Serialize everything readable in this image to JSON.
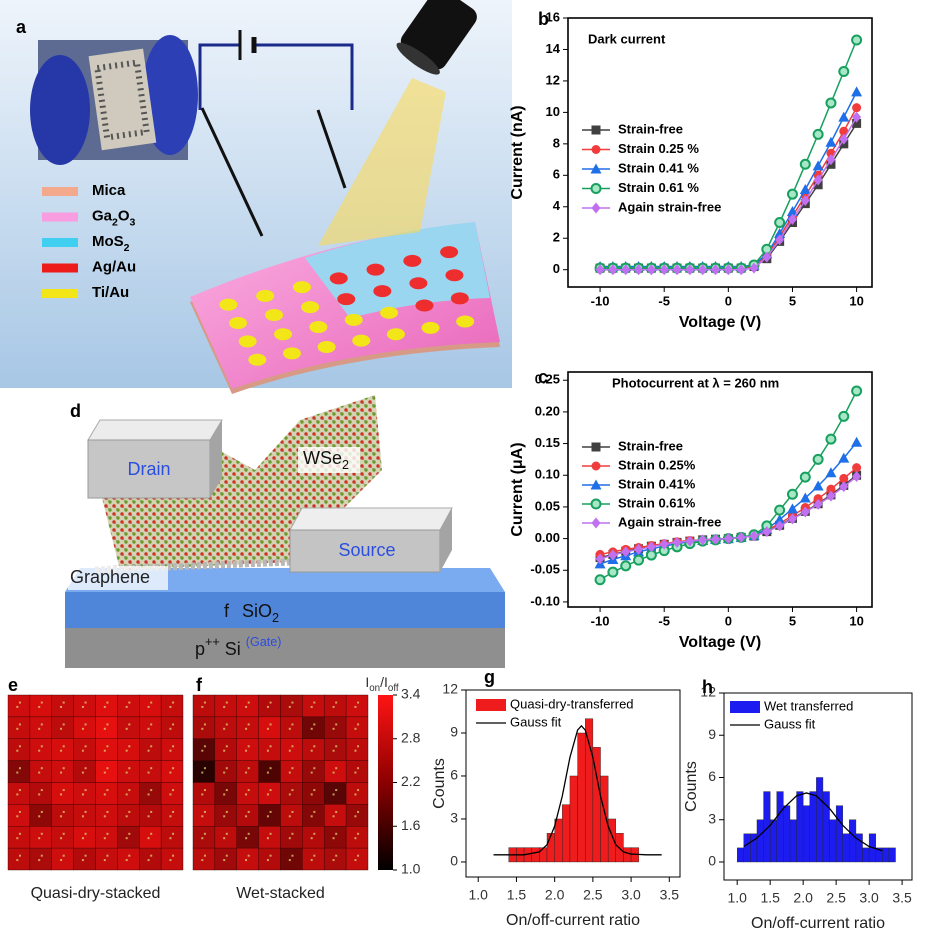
{
  "illustration_a": {
    "label": "a",
    "legend": [
      {
        "name": [
          "Mica"
        ],
        "color": "#f5a98c"
      },
      {
        "name": [
          "Ga",
          "2",
          "O",
          "3"
        ],
        "color": "#f89de0"
      },
      {
        "name": [
          "MoS",
          "2"
        ],
        "color": "#40cff0"
      },
      {
        "name": [
          "Ag/Au"
        ],
        "color": "#ee1b1b"
      },
      {
        "name": [
          "Ti/Au"
        ],
        "color": "#f2e619"
      }
    ]
  },
  "illustration_d": {
    "label": "d",
    "drain": "Drain",
    "source": "Source",
    "material": [
      "WSe",
      "2"
    ],
    "graphene": "Graphene",
    "oxide_marker": "f",
    "oxide": [
      "SiO",
      "2"
    ],
    "gate": [
      "p",
      "++",
      " Si ",
      "(Gate)"
    ]
  },
  "chart_data": [
    {
      "type": "line",
      "label": "b",
      "annotation": "Dark current",
      "x_label": "Voltage (V)",
      "y_label": "Current (nA)",
      "x": [
        -10,
        -9,
        -8,
        -7,
        -6,
        -5,
        -4,
        -3,
        -2,
        -1,
        0,
        1,
        2,
        3,
        4,
        5,
        6,
        7,
        8,
        9,
        10
      ],
      "xlim": [
        -12.5,
        11.2
      ],
      "xticks": [
        -10,
        -5,
        0,
        5,
        10
      ],
      "ylim": [
        -1.1,
        16
      ],
      "yticks": [
        0,
        2,
        4,
        6,
        8,
        10,
        12,
        14,
        16
      ],
      "series": [
        {
          "name": "Strain-free",
          "color": "#404040",
          "marker": "square",
          "values": [
            0.1,
            0.1,
            0.1,
            0.1,
            0.1,
            0.1,
            0.1,
            0.1,
            0.1,
            0.1,
            0.1,
            0.1,
            0.2,
            0.7,
            1.8,
            3.0,
            4.2,
            5.4,
            6.7,
            8.0,
            9.3
          ]
        },
        {
          "name": "Strain 0.25 %",
          "color": "#f03c3c",
          "marker": "circle",
          "values": [
            0.1,
            0.1,
            0.1,
            0.1,
            0.1,
            0.1,
            0.1,
            0.1,
            0.1,
            0.1,
            0.1,
            0.1,
            0.2,
            0.9,
            2.1,
            3.4,
            4.7,
            6.0,
            7.4,
            8.8,
            10.3
          ]
        },
        {
          "name": "Strain 0.41 %",
          "color": "#1f6fe8",
          "marker": "triangle",
          "values": [
            0.2,
            0.2,
            0.2,
            0.2,
            0.2,
            0.2,
            0.2,
            0.2,
            0.2,
            0.2,
            0.2,
            0.2,
            0.3,
            1.0,
            2.3,
            3.7,
            5.1,
            6.6,
            8.1,
            9.7,
            11.3
          ]
        },
        {
          "name": "Strain 0.61 %",
          "color": "#17a05e",
          "marker": "circle-open",
          "values": [
            0.1,
            0.1,
            0.1,
            0.1,
            0.1,
            0.1,
            0.1,
            0.1,
            0.1,
            0.1,
            0.1,
            0.1,
            0.3,
            1.3,
            3.0,
            4.8,
            6.7,
            8.6,
            10.6,
            12.6,
            14.6
          ]
        },
        {
          "name": "Again strain-free",
          "color": "#c070f0",
          "marker": "diamond",
          "values": [
            0.0,
            0.0,
            0.0,
            0.0,
            0.0,
            0.0,
            0.0,
            0.0,
            0.0,
            0.0,
            0.0,
            0.0,
            0.1,
            0.8,
            1.9,
            3.2,
            4.4,
            5.7,
            7.0,
            8.3,
            9.7
          ]
        }
      ]
    },
    {
      "type": "line",
      "label": "c",
      "annotation": "Photocurrent at λ = 260 nm",
      "x_label": "Voltage (V)",
      "y_label": "Current (μA)",
      "x": [
        -10,
        -9,
        -8,
        -7,
        -6,
        -5,
        -4,
        -3,
        -2,
        -1,
        0,
        1,
        2,
        3,
        4,
        5,
        6,
        7,
        8,
        9,
        10
      ],
      "xlim": [
        -12.5,
        11.2
      ],
      "xticks": [
        -10,
        -5,
        0,
        5,
        10
      ],
      "ylim": [
        -0.108,
        0.263
      ],
      "yticks": [
        {
          "value": -0.1,
          "label": "-0.10"
        },
        -0.05,
        {
          "value": 0,
          "label": "0.00"
        },
        0.05,
        {
          "value": 0.1,
          "label": "0.10"
        },
        0.15,
        {
          "value": 0.2,
          "label": "0.20"
        },
        0.25
      ],
      "series": [
        {
          "name": "Strain-free",
          "color": "#404040",
          "marker": "square",
          "values": [
            -0.03,
            -0.025,
            -0.02,
            -0.016,
            -0.012,
            -0.009,
            -0.006,
            -0.004,
            -0.002,
            -0.001,
            0,
            0.002,
            0.004,
            0.011,
            0.021,
            0.032,
            0.043,
            0.055,
            0.069,
            0.084,
            0.1
          ]
        },
        {
          "name": "Strain 0.25%",
          "color": "#f03c3c",
          "marker": "circle",
          "values": [
            -0.025,
            -0.021,
            -0.017,
            -0.014,
            -0.011,
            -0.008,
            -0.005,
            -0.003,
            -0.002,
            -0.001,
            0,
            0.002,
            0.005,
            0.013,
            0.024,
            0.036,
            0.049,
            0.063,
            0.078,
            0.095,
            0.112
          ]
        },
        {
          "name": "Strain 0.41%",
          "color": "#1f6fe8",
          "marker": "triangle",
          "values": [
            -0.04,
            -0.033,
            -0.027,
            -0.021,
            -0.016,
            -0.012,
            -0.008,
            -0.005,
            -0.003,
            -0.001,
            0,
            0.002,
            0.005,
            0.015,
            0.03,
            0.047,
            0.064,
            0.083,
            0.104,
            0.127,
            0.152
          ]
        },
        {
          "name": "Strain 0.61%",
          "color": "#17a05e",
          "marker": "circle-open",
          "values": [
            -0.065,
            -0.053,
            -0.043,
            -0.034,
            -0.026,
            -0.019,
            -0.013,
            -0.008,
            -0.004,
            -0.002,
            0,
            0.002,
            0.006,
            0.02,
            0.045,
            0.07,
            0.097,
            0.125,
            0.157,
            0.193,
            0.233
          ]
        },
        {
          "name": "Again strain-free",
          "color": "#c070f0",
          "marker": "diamond",
          "values": [
            -0.032,
            -0.026,
            -0.021,
            -0.017,
            -0.013,
            -0.009,
            -0.006,
            -0.004,
            -0.002,
            -0.001,
            0,
            0.002,
            0.004,
            0.011,
            0.02,
            0.031,
            0.042,
            0.054,
            0.067,
            0.082,
            0.098
          ]
        }
      ]
    },
    {
      "type": "heatmap",
      "label": "e",
      "caption": "Quasi-dry-stacked",
      "zlim": [
        1.0,
        3.4
      ],
      "values": [
        [
          2.8,
          2.9,
          2.7,
          2.8,
          3.0,
          2.8,
          2.9,
          2.7
        ],
        [
          2.7,
          2.8,
          2.6,
          2.9,
          3.1,
          2.7,
          2.8,
          2.6
        ],
        [
          2.6,
          2.8,
          2.9,
          2.7,
          3.0,
          2.9,
          2.6,
          2.8
        ],
        [
          2.0,
          2.7,
          2.8,
          2.5,
          3.1,
          2.8,
          2.7,
          2.9
        ],
        [
          2.7,
          2.5,
          2.9,
          2.8,
          2.9,
          2.7,
          2.2,
          2.8
        ],
        [
          2.8,
          2.1,
          2.6,
          2.7,
          2.8,
          2.6,
          2.5,
          2.7
        ],
        [
          2.7,
          2.8,
          2.7,
          2.9,
          2.8,
          2.3,
          2.9,
          2.6
        ],
        [
          2.6,
          2.4,
          2.8,
          2.5,
          2.7,
          2.8,
          2.5,
          2.7
        ]
      ]
    },
    {
      "type": "heatmap",
      "label": "f",
      "caption": "Wet-stacked",
      "zlim": [
        1.0,
        3.4
      ],
      "values": [
        [
          2.6,
          2.7,
          2.8,
          2.5,
          2.4,
          2.7,
          2.6,
          2.8
        ],
        [
          2.4,
          2.6,
          2.7,
          2.9,
          2.6,
          1.8,
          2.2,
          2.7
        ],
        [
          1.6,
          2.5,
          2.8,
          2.7,
          2.8,
          2.6,
          2.4,
          2.6
        ],
        [
          1.2,
          2.3,
          2.6,
          1.5,
          2.7,
          2.2,
          2.8,
          2.5
        ],
        [
          2.5,
          1.9,
          2.7,
          2.8,
          2.4,
          2.1,
          1.6,
          2.6
        ],
        [
          2.7,
          2.2,
          2.5,
          1.7,
          2.6,
          2.0,
          2.7,
          2.2
        ],
        [
          2.4,
          2.6,
          1.9,
          2.7,
          2.3,
          2.5,
          2.1,
          2.6
        ],
        [
          2.6,
          2.3,
          2.7,
          2.5,
          1.8,
          2.6,
          2.4,
          2.7
        ]
      ],
      "colorbar": {
        "title": [
          "I",
          "on",
          "/I",
          "off"
        ],
        "ticks": [
          {
            "value": 1.0,
            "label": "1.0"
          },
          1.6,
          2.2,
          2.8,
          3.4
        ]
      }
    },
    {
      "type": "histogram",
      "label": "g",
      "x_label": "On/off-current ratio",
      "y_label": "Counts",
      "bins": [
        1.4,
        1.5,
        1.6,
        1.7,
        1.8,
        1.9,
        2.0,
        2.1,
        2.2,
        2.3,
        2.4,
        2.5,
        2.6,
        2.7,
        2.8,
        2.9,
        3.0,
        3.1
      ],
      "xlim": [
        0.84,
        3.64
      ],
      "xticks": [
        {
          "value": 1,
          "label": "1.0"
        },
        1.5,
        {
          "value": 2,
          "label": "2.0"
        },
        2.5,
        {
          "value": 3,
          "label": "3.0"
        },
        3.5
      ],
      "ylim": [
        -1.05,
        12
      ],
      "yticks": [
        0,
        3,
        6,
        9,
        12
      ],
      "series": [
        {
          "name": "Quasi-dry-transferred",
          "color": "#ee1c1c",
          "values": [
            1,
            1,
            1,
            1,
            1,
            2,
            3,
            4,
            6,
            9,
            10,
            8,
            6,
            3,
            2,
            1,
            1
          ]
        }
      ],
      "fit": {
        "name": "Gauss fit",
        "color": "#000000",
        "x": [
          1.2,
          1.4,
          1.6,
          1.8,
          1.9,
          2.0,
          2.1,
          2.2,
          2.3,
          2.35,
          2.4,
          2.5,
          2.6,
          2.7,
          2.8,
          2.9,
          3.0,
          3.2,
          3.4
        ],
        "values": [
          0.5,
          0.5,
          0.5,
          0.7,
          1.2,
          2.5,
          4.6,
          7.3,
          9.2,
          9.5,
          9.2,
          7.3,
          4.6,
          2.5,
          1.2,
          0.7,
          0.55,
          0.5,
          0.5
        ]
      }
    },
    {
      "type": "histogram",
      "label": "h",
      "x_label": "On/off-current ratio",
      "y_label": "Counts",
      "bins": [
        1.0,
        1.1,
        1.2,
        1.3,
        1.4,
        1.5,
        1.6,
        1.7,
        1.8,
        1.9,
        2.0,
        2.1,
        2.2,
        2.3,
        2.4,
        2.5,
        2.6,
        2.7,
        2.8,
        2.9,
        3.0,
        3.1,
        3.2,
        3.3,
        3.4
      ],
      "xlim": [
        0.8,
        3.65
      ],
      "xticks": [
        {
          "value": 1,
          "label": "1.0"
        },
        1.5,
        {
          "value": 2,
          "label": "2.0"
        },
        2.5,
        {
          "value": 3,
          "label": "3.0"
        },
        3.5
      ],
      "ylim": [
        -1.28,
        12
      ],
      "yticks": [
        0,
        3,
        6,
        9,
        12
      ],
      "series": [
        {
          "name": "Wet transferred",
          "color": "#1c1cf0",
          "values": [
            1,
            2,
            2,
            3,
            5,
            3,
            5,
            4,
            3,
            5,
            4,
            5,
            6,
            5,
            3,
            4,
            2,
            3,
            2,
            1,
            2,
            1,
            1,
            1
          ]
        }
      ],
      "fit": {
        "name": "Gauss fit",
        "color": "#000000",
        "x": [
          1.1,
          1.3,
          1.5,
          1.7,
          1.9,
          2.05,
          2.2,
          2.4,
          2.6,
          2.8,
          3.0,
          3.2
        ],
        "values": [
          1.1,
          1.7,
          2.6,
          3.8,
          4.7,
          4.9,
          4.7,
          3.8,
          2.6,
          1.7,
          1.1,
          0.8
        ]
      }
    }
  ]
}
